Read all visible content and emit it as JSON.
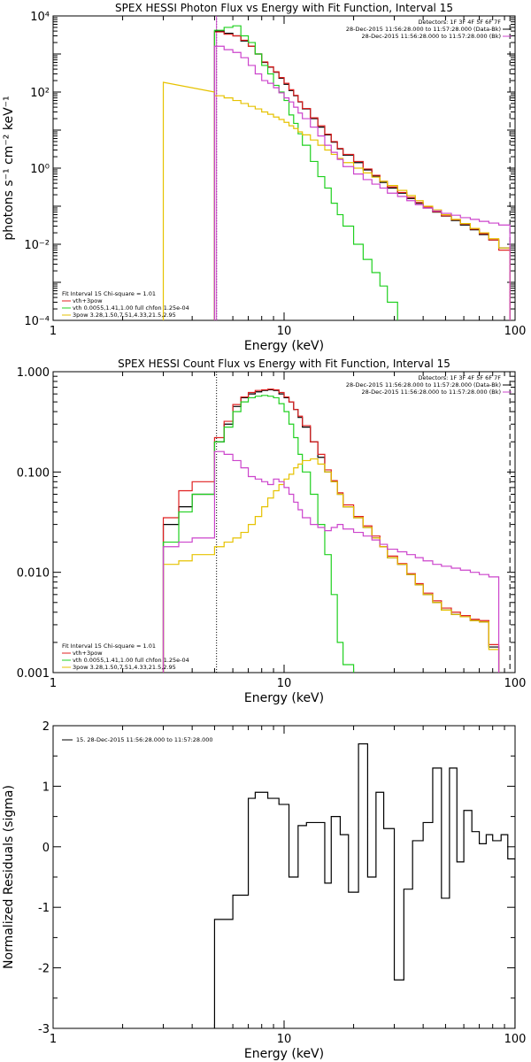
{
  "chart_data": [
    {
      "id": "photon",
      "type": "line",
      "title": "SPEX HESSI Photon Flux vs Energy with Fit Function, Interval 15",
      "xlabel": "Energy (keV)",
      "ylabel": "photons s⁻¹ cm⁻² keV⁻¹",
      "xscale": "log",
      "yscale": "log",
      "xlim": [
        1,
        100
      ],
      "ylim": [
        0.0001,
        10000
      ],
      "xticks": [
        {
          "v": 1,
          "label": "1"
        },
        {
          "v": 10,
          "label": "10"
        },
        {
          "v": 100,
          "label": "100"
        }
      ],
      "yticks": [
        {
          "v": 0.0001,
          "label": "10⁻⁴"
        },
        {
          "v": 0.01,
          "label": "10⁻²"
        },
        {
          "v": 1,
          "label": "10⁰"
        },
        {
          "v": 100,
          "label": "10²"
        },
        {
          "v": 10000,
          "label": "10⁴"
        }
      ],
      "vlines": [
        {
          "x": 5.1,
          "style": "dotted",
          "color": "#000000"
        },
        {
          "x": 5.1,
          "style": "solid",
          "color": "#cc44cc"
        },
        {
          "x": 95,
          "style": "dashed",
          "color": "#000000"
        }
      ],
      "header": [
        "Detectors: 1F 3F 4F 5F 6F 7F",
        "28-Dec-2015 11:56:28.000 to 11:57:28.000 (Data-Bk)",
        "28-Dec-2015 11:56:28.000 to 11:57:28.000 (Bk)"
      ],
      "legend": {
        "line1": "Fit Interval 15   Chi-square = 1.01",
        "entries": [
          "vth+3pow",
          "vth 0.0055,1.41,1.00  full chfon 1.25e-04",
          "3pow 3.28,1.50,7.51,4.33,21.5,2.95"
        ]
      },
      "edges": [
        5,
        5.5,
        6,
        6.5,
        7,
        7.5,
        8,
        8.5,
        9,
        9.5,
        10,
        10.5,
        11,
        11.5,
        12,
        13,
        14,
        15,
        16,
        17,
        18,
        20,
        22,
        24,
        26,
        28,
        31,
        34,
        37,
        40,
        44,
        48,
        53,
        58,
        64,
        70,
        77,
        85,
        95
      ],
      "series": [
        {
          "name": "data",
          "color": "#000000",
          "values": [
            4000,
            3500,
            3000,
            2200,
            1600,
            1000,
            600,
            450,
            330,
            230,
            160,
            110,
            80,
            55,
            36,
            20,
            12,
            7.5,
            4.8,
            3.2,
            2.2,
            1.4,
            0.9,
            0.62,
            0.42,
            0.3,
            0.22,
            0.16,
            0.12,
            0.09,
            0.07,
            0.055,
            0.042,
            0.032,
            0.024,
            0.018,
            0.013,
            0.008
          ]
        },
        {
          "name": "vth+3pow",
          "color": "#e02020",
          "values": [
            3800,
            3300,
            3000,
            2300,
            1600,
            1000,
            620,
            460,
            340,
            240,
            170,
            115,
            82,
            56,
            37,
            21,
            13,
            7.8,
            5,
            3.3,
            2.3,
            1.5,
            0.95,
            0.65,
            0.45,
            0.32,
            0.23,
            0.17,
            0.125,
            0.095,
            0.072,
            0.056,
            0.044,
            0.034,
            0.025,
            0.019,
            0.013,
            0.007
          ]
        },
        {
          "name": "vth",
          "color": "#20d020",
          "values": [
            4200,
            5000,
            5500,
            3000,
            2000,
            1000,
            500,
            300,
            150,
            100,
            60,
            25,
            15,
            8,
            4,
            1.5,
            0.6,
            0.3,
            0.12,
            0.06,
            0.03,
            0.01,
            0.004,
            0.0018,
            0.0008,
            0.0003
          ]
        },
        {
          "name": "3pow",
          "color": "#e6c200",
          "values": [
            80,
            70,
            60,
            50,
            42,
            36,
            30,
            26,
            22,
            19,
            16,
            13,
            11,
            9,
            7.5,
            5.5,
            4,
            3,
            2.3,
            1.8,
            1.4,
            1,
            0.75,
            0.58,
            0.45,
            0.35,
            0.26,
            0.19,
            0.14,
            0.1,
            0.08,
            0.06,
            0.045,
            0.035,
            0.026,
            0.02,
            0.014,
            0.008
          ]
        },
        {
          "name": "background",
          "color": "#cc44cc",
          "values": [
            1600,
            1300,
            1100,
            800,
            500,
            300,
            200,
            170,
            130,
            95,
            70,
            55,
            40,
            28,
            20,
            12,
            7,
            4,
            2.6,
            1.7,
            1.1,
            0.7,
            0.5,
            0.38,
            0.3,
            0.22,
            0.18,
            0.14,
            0.11,
            0.09,
            0.075,
            0.065,
            0.058,
            0.05,
            0.045,
            0.04,
            0.036,
            0.032
          ]
        }
      ],
      "pow_low": {
        "color": "#e6c200",
        "x": [
          3,
          5
        ],
        "y": [
          180,
          100
        ]
      }
    },
    {
      "id": "count",
      "type": "line",
      "title": "SPEX HESSI Count Flux vs Energy with Fit Function, Interval 15",
      "xlabel": "Energy (keV)",
      "ylabel": "",
      "xscale": "log",
      "yscale": "log",
      "xlim": [
        1,
        100
      ],
      "ylim": [
        0.001,
        1
      ],
      "xticks": [
        {
          "v": 1,
          "label": "1"
        },
        {
          "v": 10,
          "label": "10"
        },
        {
          "v": 100,
          "label": "100"
        }
      ],
      "yticks": [
        {
          "v": 0.001,
          "label": "0.001"
        },
        {
          "v": 0.01,
          "label": "0.010"
        },
        {
          "v": 0.1,
          "label": "0.100"
        },
        {
          "v": 1,
          "label": "1.000"
        }
      ],
      "vlines": [
        {
          "x": 5.1,
          "style": "dotted",
          "color": "#000000"
        },
        {
          "x": 95,
          "style": "dashed",
          "color": "#000000"
        }
      ],
      "header": [
        "Detectors: 1F 3F 4F 5F 6F 7F",
        "28-Dec-2015 11:56:28.000 to 11:57:28.000 (Data-Bk)",
        "28-Dec-2015 11:56:28.000 to 11:57:28.000 (Bk)"
      ],
      "legend": {
        "line1": "Fit Interval 15   Chi-square = 1.01",
        "entries": [
          "vth+3pow",
          "vth 0.0055,1.41,1.00  full chfon 1.25e-04",
          "3pow 3.28,1.50,7.51,4.33,21.5,2.95"
        ]
      },
      "edges": [
        3,
        3.5,
        4,
        5,
        5.5,
        6,
        6.5,
        7,
        7.5,
        8,
        8.5,
        9,
        9.5,
        10,
        10.5,
        11,
        11.5,
        12,
        13,
        14,
        15,
        16,
        17,
        18,
        20,
        22,
        24,
        26,
        28,
        31,
        34,
        37,
        40,
        44,
        48,
        53,
        58,
        64,
        70,
        77,
        85,
        95,
        100
      ],
      "series": [
        {
          "name": "data",
          "color": "#000000",
          "values": [
            0.03,
            0.045,
            0.06,
            0.2,
            0.3,
            0.45,
            0.55,
            0.6,
            0.63,
            0.65,
            0.66,
            0.65,
            0.6,
            0.55,
            0.5,
            0.42,
            0.35,
            0.28,
            0.2,
            0.14,
            0.1,
            0.08,
            0.06,
            0.045,
            0.035,
            0.028,
            0.022,
            0.018,
            0.014,
            0.012,
            0.0095,
            0.0075,
            0.006,
            0.005,
            0.0042,
            0.0038,
            0.0036,
            0.0033,
            0.0032,
            0.0018
          ]
        },
        {
          "name": "vth+3pow",
          "color": "#e02020",
          "values": [
            0.035,
            0.065,
            0.08,
            0.22,
            0.32,
            0.47,
            0.56,
            0.62,
            0.65,
            0.66,
            0.67,
            0.66,
            0.62,
            0.56,
            0.5,
            0.42,
            0.36,
            0.29,
            0.2,
            0.15,
            0.105,
            0.082,
            0.062,
            0.047,
            0.036,
            0.029,
            0.023,
            0.018,
            0.0145,
            0.0122,
            0.0097,
            0.0077,
            0.0062,
            0.0052,
            0.0044,
            0.004,
            0.0037,
            0.0034,
            0.0033,
            0.0019
          ]
        },
        {
          "name": "vth",
          "color": "#20d020",
          "values": [
            0.02,
            0.04,
            0.06,
            0.2,
            0.28,
            0.4,
            0.5,
            0.55,
            0.57,
            0.58,
            0.57,
            0.55,
            0.48,
            0.4,
            0.3,
            0.22,
            0.15,
            0.1,
            0.06,
            0.03,
            0.015,
            0.006,
            0.002,
            0.0012
          ]
        },
        {
          "name": "3pow",
          "color": "#e6c200",
          "values": [
            0.012,
            0.013,
            0.015,
            0.018,
            0.02,
            0.022,
            0.025,
            0.03,
            0.036,
            0.045,
            0.055,
            0.065,
            0.075,
            0.085,
            0.095,
            0.11,
            0.12,
            0.13,
            0.135,
            0.12,
            0.1,
            0.08,
            0.06,
            0.045,
            0.035,
            0.028,
            0.022,
            0.018,
            0.014,
            0.012,
            0.0095,
            0.0075,
            0.006,
            0.005,
            0.0042,
            0.0038,
            0.0036,
            0.0033,
            0.0032,
            0.0017
          ]
        },
        {
          "name": "background",
          "color": "#cc44cc",
          "values": [
            0.018,
            0.02,
            0.022,
            0.16,
            0.15,
            0.13,
            0.11,
            0.09,
            0.085,
            0.08,
            0.075,
            0.085,
            0.08,
            0.07,
            0.06,
            0.05,
            0.042,
            0.035,
            0.03,
            0.028,
            0.026,
            0.028,
            0.03,
            0.027,
            0.025,
            0.023,
            0.021,
            0.019,
            0.017,
            0.016,
            0.015,
            0.014,
            0.013,
            0.012,
            0.0115,
            0.011,
            0.0105,
            0.01,
            0.0095,
            0.009
          ]
        }
      ]
    },
    {
      "id": "residuals",
      "type": "line",
      "title": "",
      "xlabel": "Energy (keV)",
      "ylabel": "Normalized Residuals (sigma)",
      "xscale": "log",
      "yscale": "linear",
      "xlim": [
        1,
        100
      ],
      "ylim": [
        -3,
        2
      ],
      "xticks": [
        {
          "v": 1,
          "label": "1"
        },
        {
          "v": 10,
          "label": "10"
        },
        {
          "v": 100,
          "label": "100"
        }
      ],
      "yticks": [
        {
          "v": -3,
          "label": "-3"
        },
        {
          "v": -2,
          "label": "-2"
        },
        {
          "v": -1,
          "label": "-1"
        },
        {
          "v": 0,
          "label": "0"
        },
        {
          "v": 1,
          "label": "1"
        },
        {
          "v": 2,
          "label": "2"
        }
      ],
      "legend": {
        "line1": "15. 28-Dec-2015 11:56:28.000 to 11:57:28.000"
      },
      "edges": [
        5,
        6,
        7,
        7.5,
        8.5,
        9.5,
        10.5,
        11.5,
        12.5,
        13.5,
        15,
        16,
        17.5,
        19,
        21,
        23,
        25,
        27,
        30,
        33,
        36,
        40,
        44,
        48,
        52,
        56,
        60,
        65,
        70,
        75,
        80,
        87,
        93,
        100
      ],
      "series": [
        {
          "name": "residuals",
          "color": "#000000",
          "values": [
            -1.2,
            -0.8,
            0.8,
            0.9,
            0.8,
            0.7,
            -0.5,
            0.35,
            0.4,
            0.4,
            -0.6,
            0.5,
            0.2,
            -0.75,
            1.7,
            -0.5,
            0.9,
            0.3,
            -2.2,
            -0.7,
            0.1,
            0.4,
            1.3,
            -0.85,
            1.3,
            -0.25,
            0.6,
            0.25,
            0.05,
            0.2,
            0.1,
            0.2,
            -0.2
          ]
        }
      ]
    }
  ]
}
